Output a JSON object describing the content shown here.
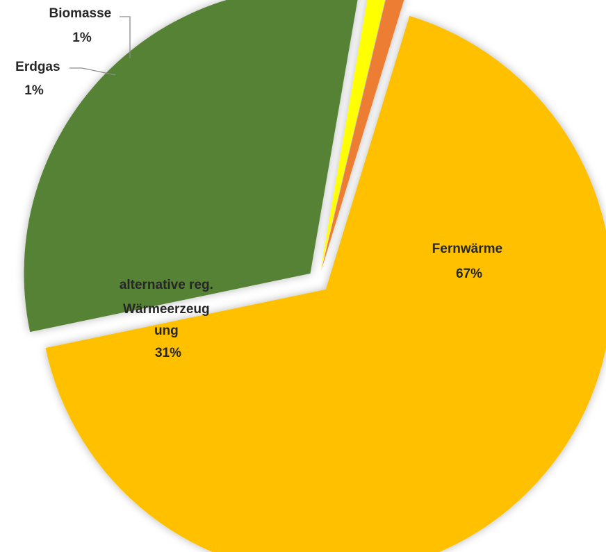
{
  "chart_data": {
    "type": "pie",
    "title": "",
    "series": [
      {
        "slices": [
          {
            "label": "Fernwärme",
            "label_lines": [
              "Fernwärme"
            ],
            "percent_label": "67%",
            "value": 67,
            "color": "#FFC000"
          },
          {
            "label": "alternative reg. Wärmeerzeugung",
            "label_lines": [
              "alternative reg.",
              "Wärmeerzeug",
              "ung"
            ],
            "percent_label": "31%",
            "value": 31,
            "color": "#548235"
          },
          {
            "label": "Erdgas",
            "label_lines": [
              "Erdgas"
            ],
            "percent_label": "1%",
            "value": 1,
            "color": "#FFFF00"
          },
          {
            "label": "Biomasse",
            "label_lines": [
              "Biomasse"
            ],
            "percent_label": "1%",
            "value": 1,
            "color": "#ED7D31"
          }
        ]
      }
    ],
    "start_angle_deg": 17,
    "exploded": true,
    "legend": "none"
  }
}
